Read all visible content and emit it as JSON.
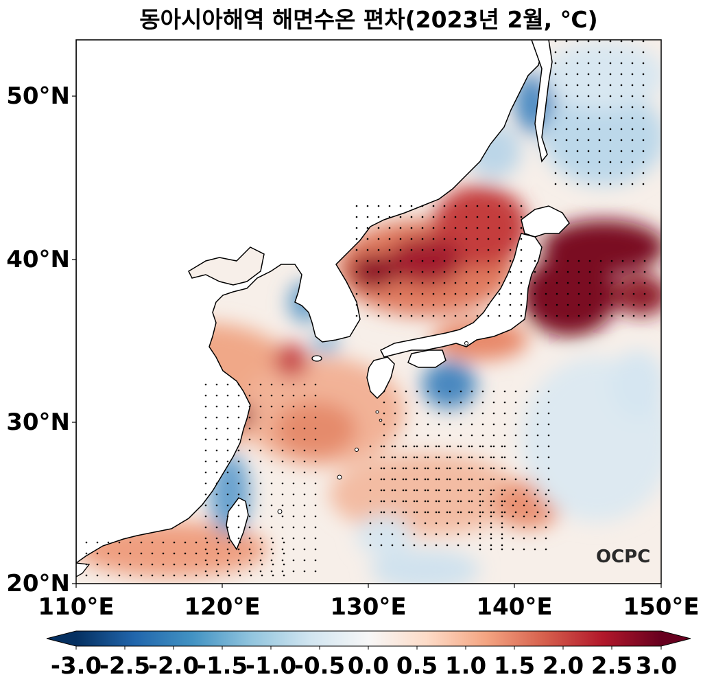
{
  "title": "동아시아해역 해면수온 편차(2023년 2월, ℃)",
  "watermark": "OCPC",
  "map": {
    "lat_range": [
      20,
      53.5
    ],
    "lon_range": [
      110,
      150
    ],
    "lat_ticks": [
      "20°N",
      "30°N",
      "40°N",
      "50°N"
    ],
    "lon_ticks": [
      "110°E",
      "120°E",
      "130°E",
      "140°E",
      "150°E"
    ]
  },
  "colorbar": {
    "ticks": [
      "-3.0",
      "-2.5",
      "-2.0",
      "-1.5",
      "-1.0",
      "-0.5",
      "0.0",
      "0.5",
      "1.0",
      "1.5",
      "2.0",
      "2.5",
      "3.0"
    ],
    "range": [
      -3.0,
      3.0
    ],
    "colormap": [
      "#053061",
      "#2166ac",
      "#4393c3",
      "#92c5de",
      "#d1e5f0",
      "#f7f7f7",
      "#fddbc7",
      "#f4a582",
      "#d6604d",
      "#b2182b",
      "#67001f"
    ],
    "extend": "both"
  }
}
